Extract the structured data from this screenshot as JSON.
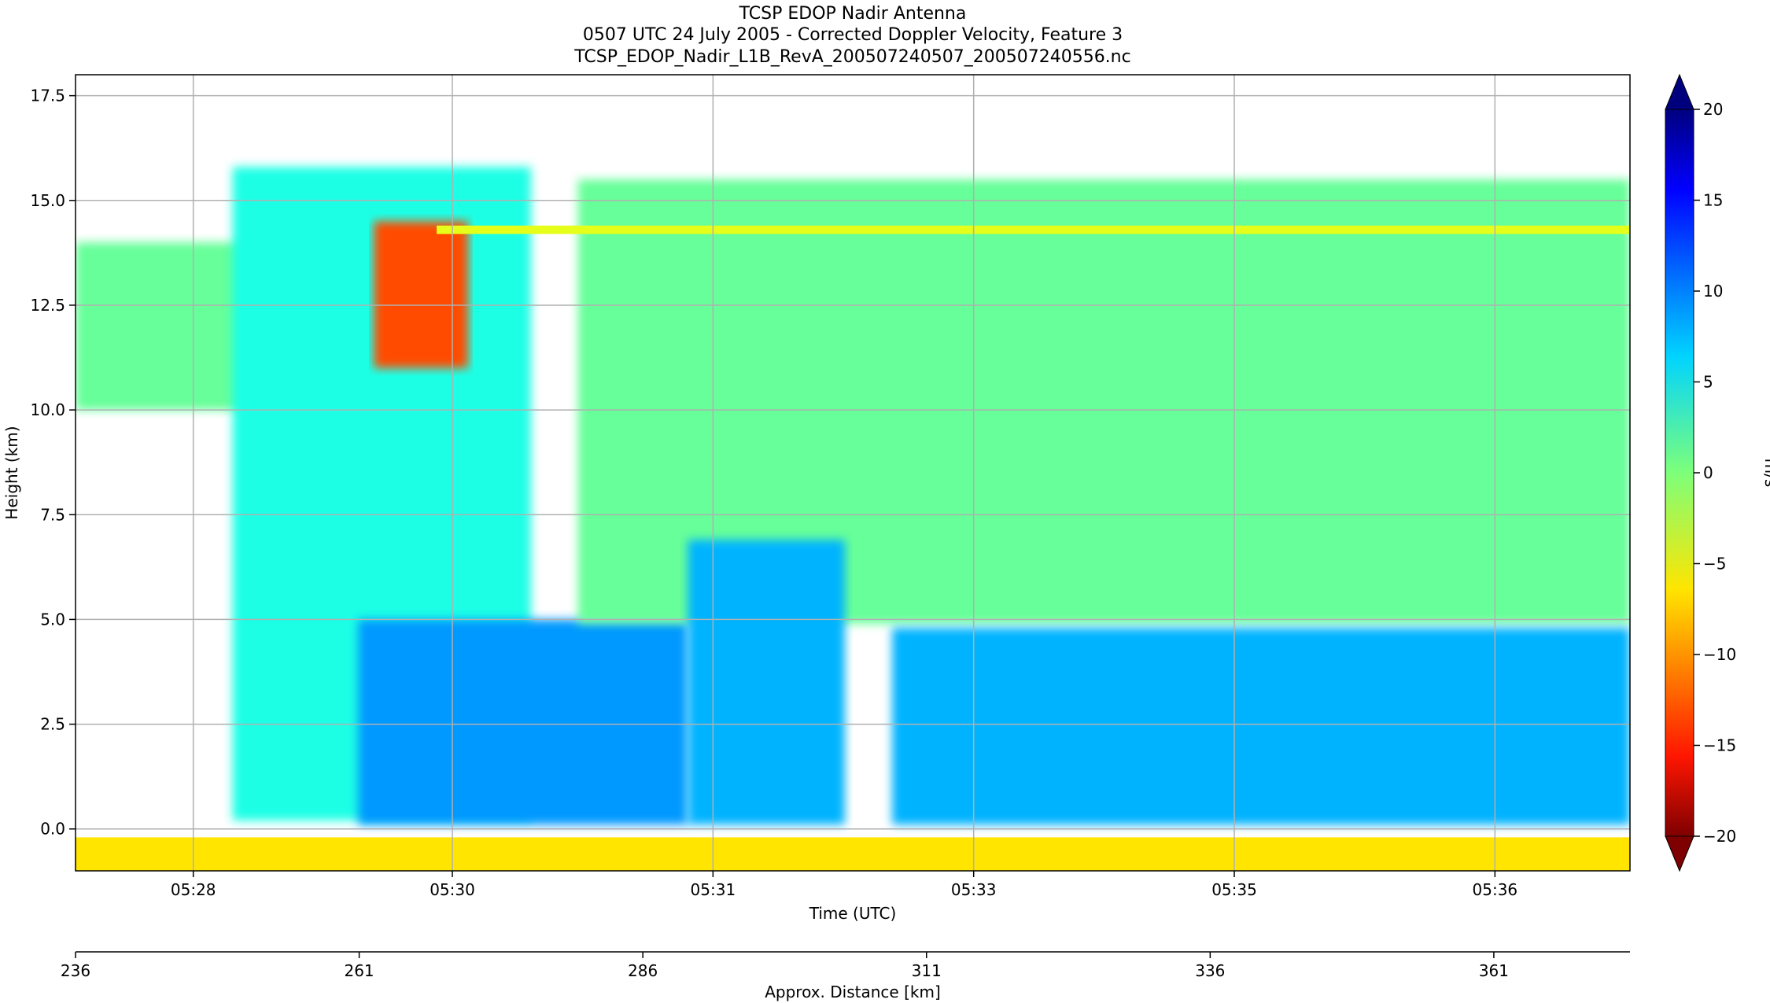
{
  "chart_data": {
    "type": "heatmap",
    "title": [
      "TCSP EDOP Nadir Antenna",
      "0507 UTC 24 July 2005 - Corrected Doppler Velocity, Feature 3",
      "TCSP_EDOP_Nadir_L1B_RevA_200507240507_200507240556.nc"
    ],
    "xlabel": "Time (UTC)",
    "ylabel": "Height (km)",
    "secondary_xlabel": "Approx. Distance [km]",
    "colorbar_label": "m/s",
    "colormap": "jet_r",
    "colorbar_extend": "both",
    "clim": [
      -20,
      20
    ],
    "colorbar_ticks": [
      20,
      15,
      10,
      5,
      0,
      -5,
      -10,
      -15,
      -20
    ],
    "xlim_minutes_after_0500": [
      27.0,
      36.9
    ],
    "ylim": [
      -1.0,
      18.0
    ],
    "grid": true,
    "x_ticks": [
      {
        "label": "05:28",
        "minute": 27.75
      },
      {
        "label": "05:30",
        "minute": 29.4
      },
      {
        "label": "05:31",
        "minute": 31.06
      },
      {
        "label": "05:33",
        "minute": 32.72
      },
      {
        "label": "05:35",
        "minute": 34.38
      },
      {
        "label": "05:36",
        "minute": 36.04
      }
    ],
    "y_ticks": [
      {
        "label": "0.0",
        "value": 0.0
      },
      {
        "label": "2.5",
        "value": 2.5
      },
      {
        "label": "5.0",
        "value": 5.0
      },
      {
        "label": "7.5",
        "value": 7.5
      },
      {
        "label": "10.0",
        "value": 10.0
      },
      {
        "label": "12.5",
        "value": 12.5
      },
      {
        "label": "15.0",
        "value": 15.0
      },
      {
        "label": "17.5",
        "value": 17.5
      }
    ],
    "distance_axis": {
      "range_km": [
        236,
        373
      ],
      "ticks": [
        {
          "label": "236",
          "value": 236
        },
        {
          "label": "261",
          "value": 261
        },
        {
          "label": "286",
          "value": 286
        },
        {
          "label": "311",
          "value": 311
        },
        {
          "label": "336",
          "value": 336
        },
        {
          "label": "361",
          "value": 361
        }
      ]
    },
    "regions": [
      {
        "name": "left-anvil",
        "velocity": 1,
        "x0": 27.0,
        "x1": 28.4,
        "y_top": 14.0,
        "y_bot": 10.0
      },
      {
        "name": "convective-tower-1",
        "velocity": 4,
        "x0": 28.0,
        "x1": 29.9,
        "y_top": 15.8,
        "y_bot": 0.2
      },
      {
        "name": "tower-1-updraft-core",
        "velocity": -12,
        "x0": 28.9,
        "x1": 29.5,
        "y_top": 14.5,
        "y_bot": 11.0
      },
      {
        "name": "tower-1-rain-shaft",
        "velocity": 9,
        "x0": 28.8,
        "x1": 30.9,
        "y_top": 5.0,
        "y_bot": 0.1
      },
      {
        "name": "stratiform-upper",
        "velocity": 1,
        "x0": 30.2,
        "x1": 36.9,
        "y_top": 15.5,
        "y_bot": 4.9
      },
      {
        "name": "melting-level-line",
        "velocity": -4,
        "x0": 29.3,
        "x1": 36.9,
        "y_top": 14.4,
        "y_bot": 14.2
      },
      {
        "name": "tower-2-rain-shaft",
        "velocity": 8,
        "x0": 30.9,
        "x1": 31.9,
        "y_top": 6.9,
        "y_bot": 0.1
      },
      {
        "name": "stratiform-rain",
        "velocity": 8,
        "x0": 32.2,
        "x1": 36.9,
        "y_top": 4.8,
        "y_bot": 0.1
      },
      {
        "name": "surface-return",
        "velocity": -6,
        "x0": 27.0,
        "x1": 36.9,
        "y_top": -0.2,
        "y_bot": -1.0
      }
    ]
  }
}
